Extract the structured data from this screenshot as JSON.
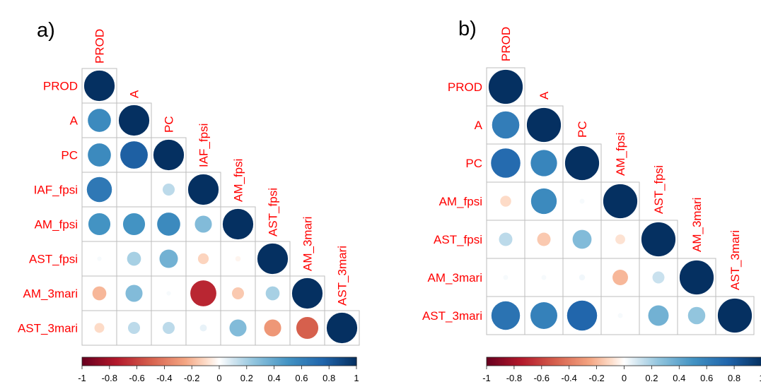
{
  "colors": {
    "label": "#ff0000",
    "grid": "#bdbdbd",
    "text": "#000000"
  },
  "chart_data": [
    {
      "type": "heatmap",
      "panel_label": "a)",
      "variables": [
        "PROD",
        "A",
        "PC",
        "IAF_fpsi",
        "AM_fpsi",
        "AST_fpsi",
        "AM_3mari",
        "AST_3mari"
      ],
      "matrix": [
        [
          1.0
        ],
        [
          0.55,
          1.0
        ],
        [
          0.55,
          0.78,
          1.0
        ],
        [
          0.65,
          0.0,
          0.15,
          1.0
        ],
        [
          0.5,
          0.5,
          0.55,
          0.3,
          1.0
        ],
        [
          0.02,
          0.2,
          0.35,
          -0.12,
          -0.03,
          1.0
        ],
        [
          -0.2,
          0.3,
          0.02,
          -0.7,
          -0.15,
          0.2,
          1.0
        ],
        [
          -0.1,
          0.15,
          0.15,
          0.05,
          0.3,
          -0.3,
          -0.5,
          1.0
        ]
      ],
      "colorbar": {
        "min": -1,
        "max": 1,
        "ticks": [
          "-1",
          "-0.8",
          "-0.6",
          "-0.4",
          "-0.2",
          "0",
          "0.2",
          "0.4",
          "0.6",
          "0.8",
          "1"
        ]
      }
    },
    {
      "type": "heatmap",
      "panel_label": "b)",
      "variables": [
        "PROD",
        "A",
        "PC",
        "AM_fpsi",
        "AST_fpsi",
        "AM_3mari",
        "AST_3mari"
      ],
      "matrix": [
        [
          1.0
        ],
        [
          0.62,
          1.0
        ],
        [
          0.72,
          0.58,
          1.0
        ],
        [
          -0.1,
          0.55,
          0.02,
          1.0
        ],
        [
          0.15,
          -0.15,
          0.3,
          -0.08,
          1.0
        ],
        [
          0.02,
          0.02,
          0.03,
          -0.2,
          0.12,
          1.0
        ],
        [
          0.68,
          0.6,
          0.75,
          0.02,
          0.35,
          0.25,
          1.0
        ]
      ],
      "colorbar": {
        "min": -1,
        "max": 1,
        "ticks": [
          "-1",
          "-0.8",
          "-0.6",
          "-0.4",
          "-0.2",
          "0",
          "0.2",
          "0.4",
          "0.6",
          "0.8",
          "1"
        ]
      }
    }
  ]
}
